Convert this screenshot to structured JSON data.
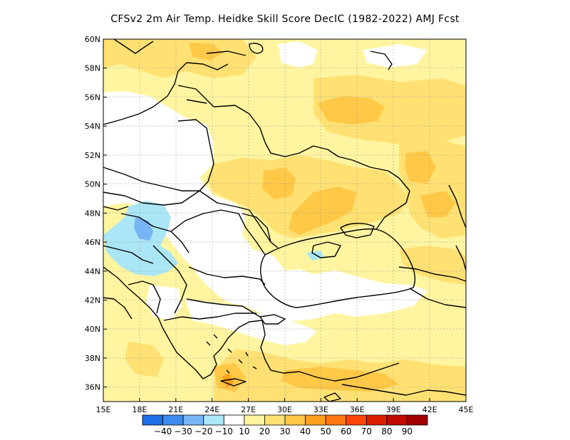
{
  "title": "CFSv2  2m Air Temp. Heidke Skill Score DecIC (1982-2022) AMJ Fcst",
  "map": {
    "lon_range": [
      15,
      45
    ],
    "lat_range": [
      35,
      60
    ],
    "lat_ticks": [
      "36N",
      "38N",
      "40N",
      "42N",
      "44N",
      "46N",
      "48N",
      "50N",
      "52N",
      "54N",
      "56N",
      "58N",
      "60N"
    ],
    "lat_values": [
      36,
      38,
      40,
      42,
      44,
      46,
      48,
      50,
      52,
      54,
      56,
      58,
      60
    ],
    "lon_ticks": [
      "15E",
      "18E",
      "21E",
      "24E",
      "27E",
      "30E",
      "33E",
      "36E",
      "39E",
      "42E",
      "45E"
    ],
    "lon_values": [
      15,
      18,
      21,
      24,
      27,
      30,
      33,
      36,
      39,
      42,
      45
    ],
    "grid": "dotted"
  },
  "colorbar": {
    "colors": [
      "#1e6ee6",
      "#3c8cf0",
      "#78b4f5",
      "#aae6f5",
      "#ffffff",
      "#fff5a0",
      "#ffe173",
      "#ffc846",
      "#ffa01e",
      "#ff7814",
      "#ff460a",
      "#dc1e00",
      "#c00a00",
      "#a00000"
    ],
    "labels": [
      "-40",
      "-30",
      "-20",
      "-10",
      "10",
      "20",
      "30",
      "40",
      "50",
      "60",
      "70",
      "80",
      "90"
    ]
  }
}
